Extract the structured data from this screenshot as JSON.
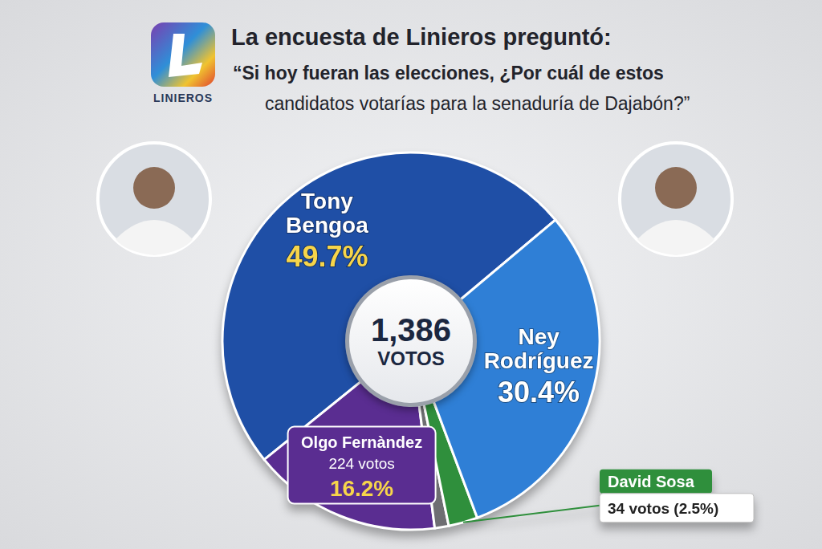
{
  "chart_data": {
    "type": "pie",
    "title": "La encuesta de Linieros preguntó:",
    "subtitle": [
      "“Si hoy fueran las elecciones, ¿Por cuál de estos",
      "candidatos votarías para la senaduría de Dajabón?”"
    ],
    "logo_text": "LINIEROS",
    "total": {
      "value": 1386,
      "label": "1,386"
    },
    "total_caption": "VOTOS",
    "categories": [
      "Tony Bengoa",
      "Olgo Fernàndez",
      null,
      "David Sosa",
      "Ney Rodríguez"
    ],
    "values": [
      49.7,
      16.2,
      1.2,
      2.5,
      30.4
    ],
    "value_labels": [
      "49.7%",
      "16.2%",
      null,
      "34 votos (2.5%)",
      "30.4%"
    ],
    "vote_labels": [
      null,
      "224 votos",
      null,
      null,
      null
    ],
    "colors": [
      "#1f4fa6",
      "#5a2d91",
      "#6e6e72",
      "#2f8f3c",
      "#2f7fd6"
    ],
    "data_labels": true
  }
}
